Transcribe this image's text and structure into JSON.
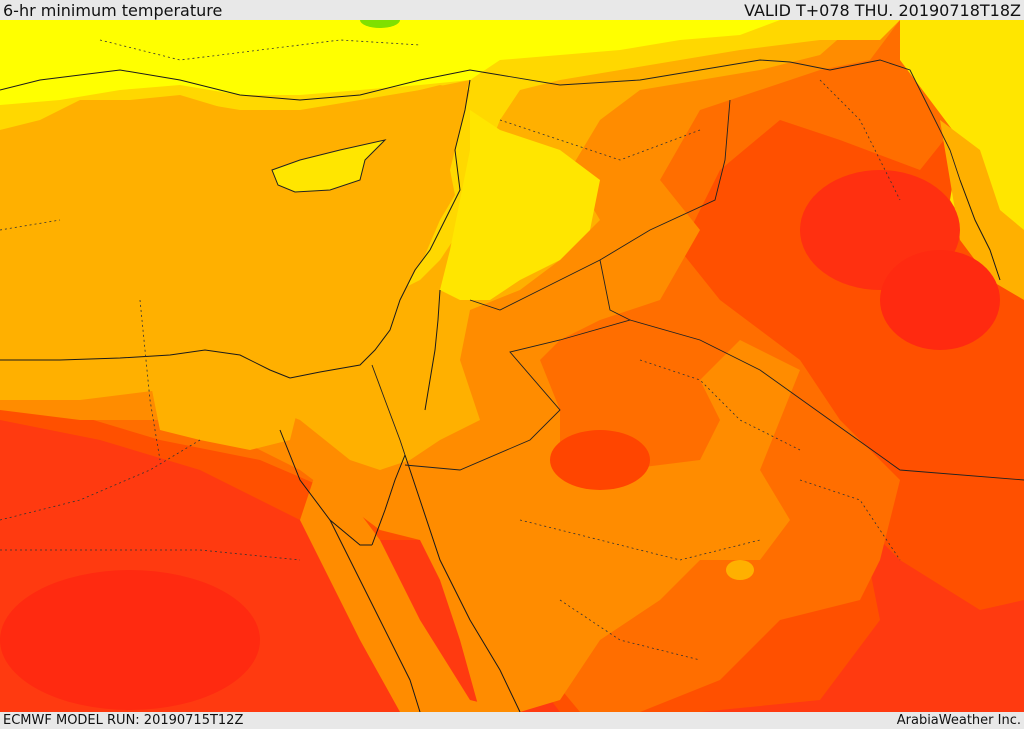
{
  "header": {
    "title": "6-hr minimum temperature",
    "valid": "VALID T+078 THU. 20190718T18Z"
  },
  "footer": {
    "model_run": "ECMWF MODEL RUN: 20190715T12Z",
    "credit": "ArabiaWeather Inc."
  },
  "colors": {
    "yellow": "#ffff00",
    "light_yellow": "#ffe600",
    "amber": "#ffb000",
    "orange": "#ff8c00",
    "dark_orange": "#ff6a00",
    "red_orange": "#ff4500",
    "red": "#ff2a10",
    "green_spot": "#7fe000"
  }
}
